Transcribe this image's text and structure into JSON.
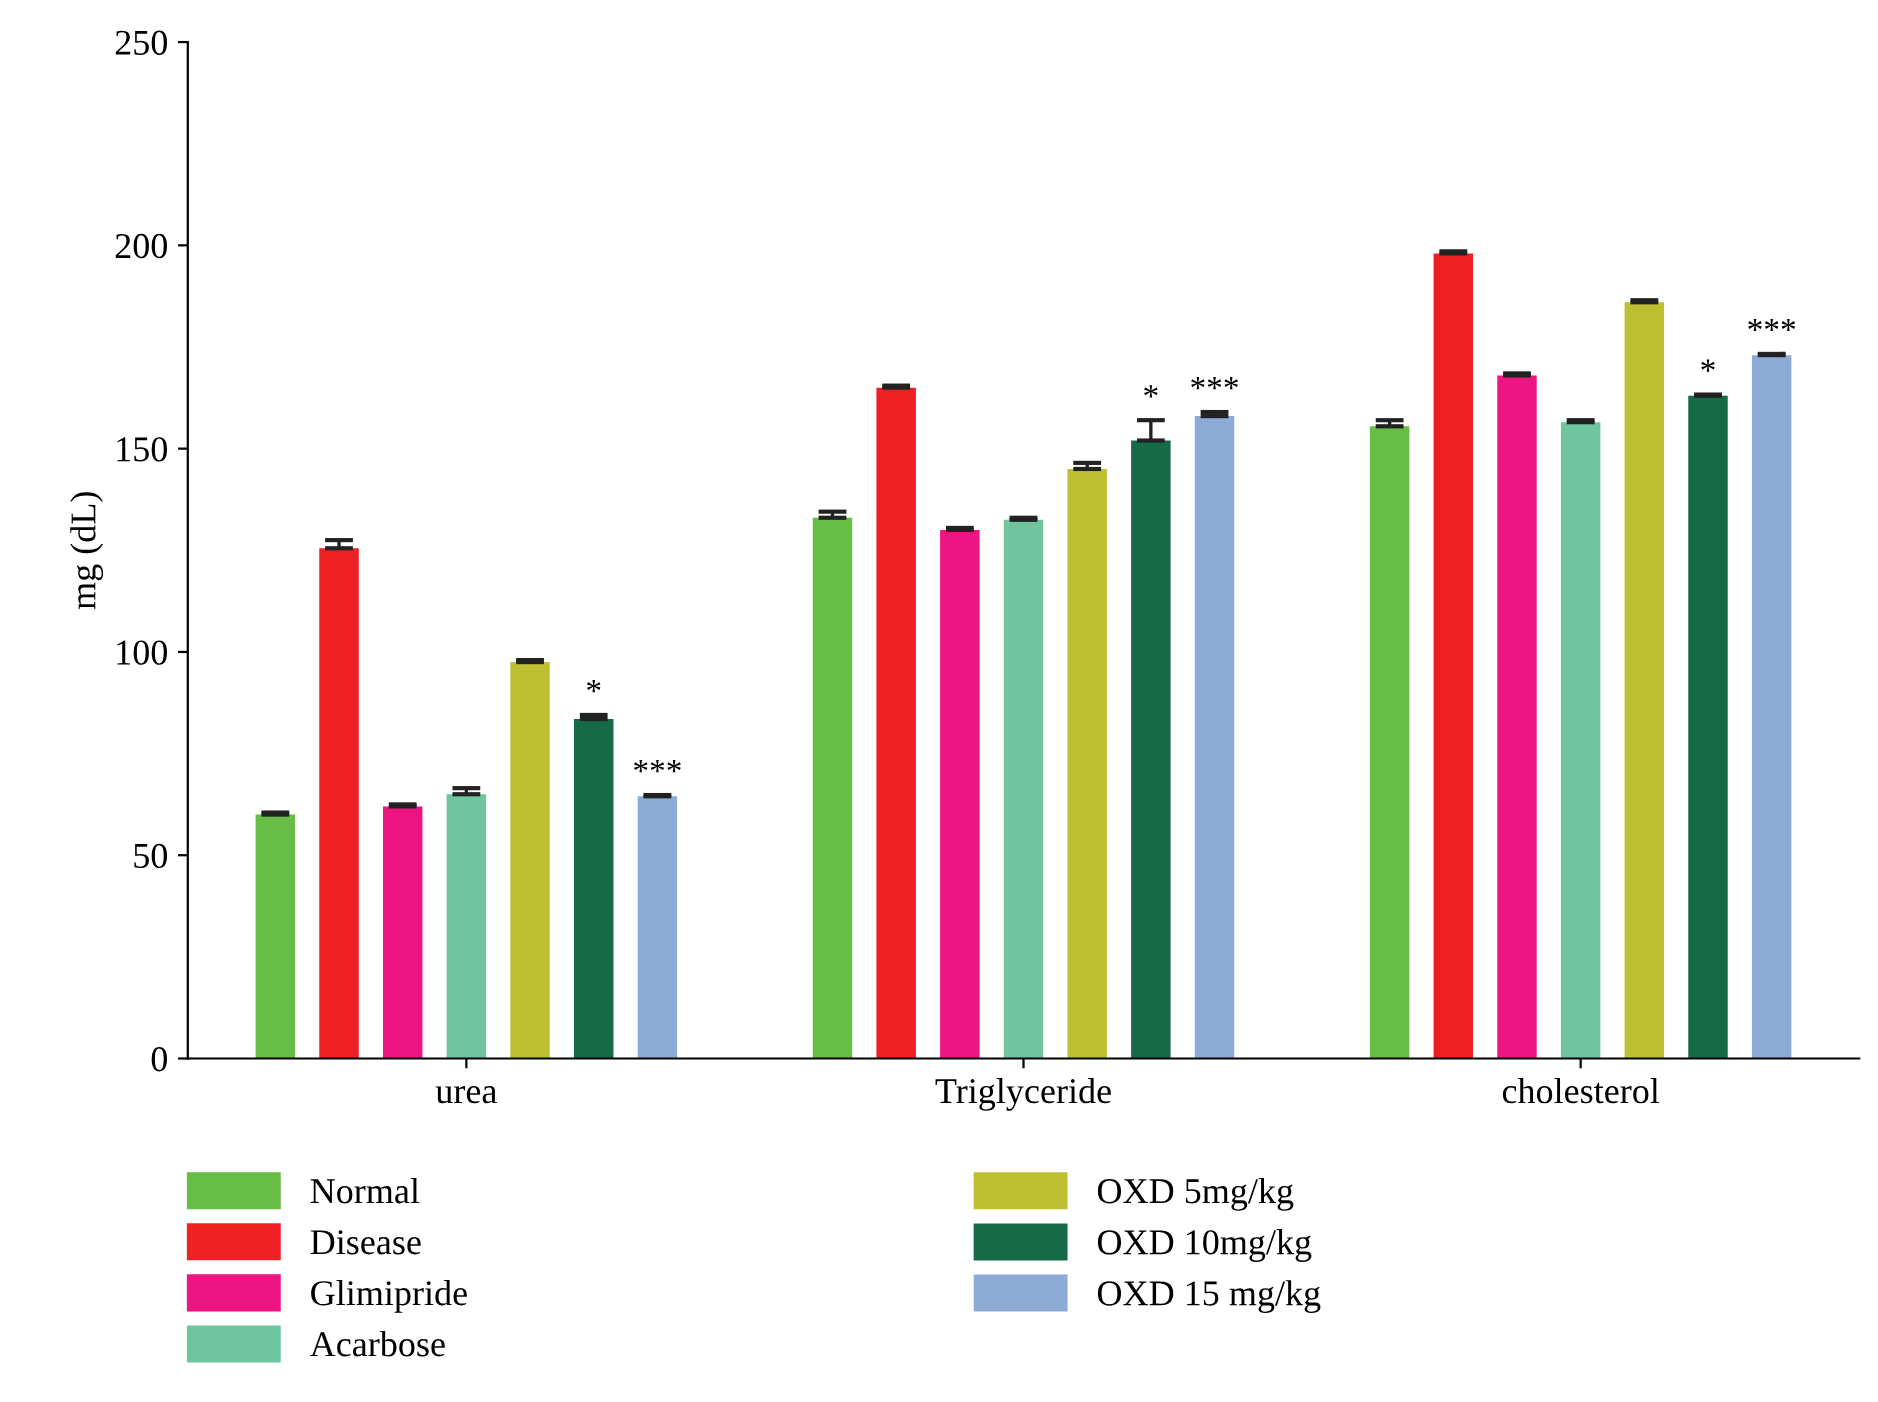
{
  "chart_data": {
    "type": "bar",
    "ylabel": "mg (dL)",
    "categories": [
      "urea",
      "Triglyceride",
      "cholesterol"
    ],
    "series": [
      {
        "name": "Normal",
        "color": "#67bd45",
        "values": [
          60,
          133,
          155.5
        ],
        "errors": [
          0.5,
          1.5,
          1.5
        ]
      },
      {
        "name": "Disease",
        "color": "#ee2024",
        "values": [
          125.5,
          165,
          198
        ],
        "errors": [
          2,
          0.5,
          0.5
        ]
      },
      {
        "name": "Glimipride",
        "color": "#ed1582",
        "values": [
          62,
          130,
          168
        ],
        "errors": [
          0.5,
          0.5,
          0.5
        ]
      },
      {
        "name": "Acarbose",
        "color": "#6fc59f",
        "values": [
          65,
          132.5,
          156.5
        ],
        "errors": [
          1.5,
          0.5,
          0.5
        ]
      },
      {
        "name": "OXD 5mg/kg",
        "color": "#bec032",
        "values": [
          97.5,
          145,
          186
        ],
        "errors": [
          0.5,
          1.5,
          0.5
        ]
      },
      {
        "name": "OXD 10mg/kg",
        "color": "#156a48",
        "values": [
          83.5,
          152,
          163
        ],
        "errors": [
          1,
          5,
          0.3
        ],
        "value_labels": [
          "*",
          "*",
          "*"
        ]
      },
      {
        "name": "OXD 15 mg/kg",
        "color": "#8dabd6",
        "values": [
          64.5,
          158,
          173
        ],
        "errors": [
          0.3,
          1,
          0.3
        ],
        "value_labels": [
          "***",
          "***",
          "***"
        ]
      }
    ],
    "ylim": [
      0,
      250
    ],
    "yticks": [
      0,
      50,
      100,
      150,
      200,
      250
    ],
    "grid": false,
    "legend": "bottom"
  }
}
